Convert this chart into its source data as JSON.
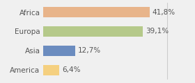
{
  "categories": [
    "Africa",
    "Europa",
    "Asia",
    "America"
  ],
  "values": [
    41.8,
    39.1,
    12.7,
    6.4
  ],
  "labels": [
    "41,8%",
    "39,1%",
    "12,7%",
    "6,4%"
  ],
  "bar_colors": [
    "#e8b48a",
    "#b5c98a",
    "#6b8cbf",
    "#f5d080"
  ],
  "background_color": "#f0f0f0",
  "xlim": [
    0,
    58
  ],
  "bar_height": 0.55,
  "label_fontsize": 7.5,
  "tick_fontsize": 7.5,
  "vline_x": 48.5,
  "vline_color": "#cccccc"
}
